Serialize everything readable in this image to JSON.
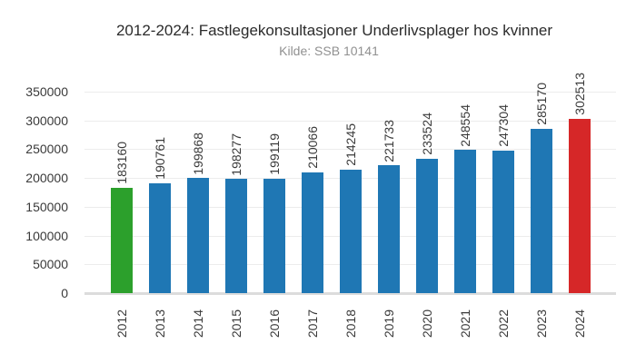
{
  "title": "2012-2024: Fastlegekonsultasjoner Underlivsplager hos kvinner",
  "subtitle": "Kilde: SSB 10141",
  "chart_data": {
    "type": "bar",
    "title": "2012-2024: Fastlegekonsultasjoner Underlivsplager hos kvinner",
    "subtitle": "Kilde: SSB 10141",
    "categories": [
      "2012",
      "2013",
      "2014",
      "2015",
      "2016",
      "2017",
      "2018",
      "2019",
      "2020",
      "2021",
      "2022",
      "2023",
      "2024"
    ],
    "values": [
      183160,
      190761,
      199868,
      198277,
      199119,
      210066,
      214245,
      221733,
      233524,
      248554,
      247304,
      285170,
      302513
    ],
    "bar_colors": [
      "#2ca02c",
      "#1f77b4",
      "#1f77b4",
      "#1f77b4",
      "#1f77b4",
      "#1f77b4",
      "#1f77b4",
      "#1f77b4",
      "#1f77b4",
      "#1f77b4",
      "#1f77b4",
      "#1f77b4",
      "#d62728"
    ],
    "value_labels": [
      183160,
      190761,
      199868,
      198277,
      199119,
      210066,
      214245,
      221733,
      233524,
      248554,
      247304,
      285170,
      302513
    ],
    "value_label_rotation": -90,
    "xtick_rotation": -90,
    "xlabel": "",
    "ylabel": "",
    "ylim": [
      0,
      350000
    ],
    "yticks": [
      0,
      50000,
      100000,
      150000,
      200000,
      250000,
      300000,
      350000
    ],
    "grid": "horizontal",
    "legend": "none",
    "colors": {
      "default_bar": "#1f77b4",
      "first_bar": "#2ca02c",
      "last_bar": "#d62728",
      "gridline": "#ececec",
      "baseline": "#dcdcdc",
      "title_text": "#2b2b2b",
      "subtitle_text": "#909090",
      "tick_text": "#3a3a3a",
      "background": "#ffffff"
    }
  }
}
